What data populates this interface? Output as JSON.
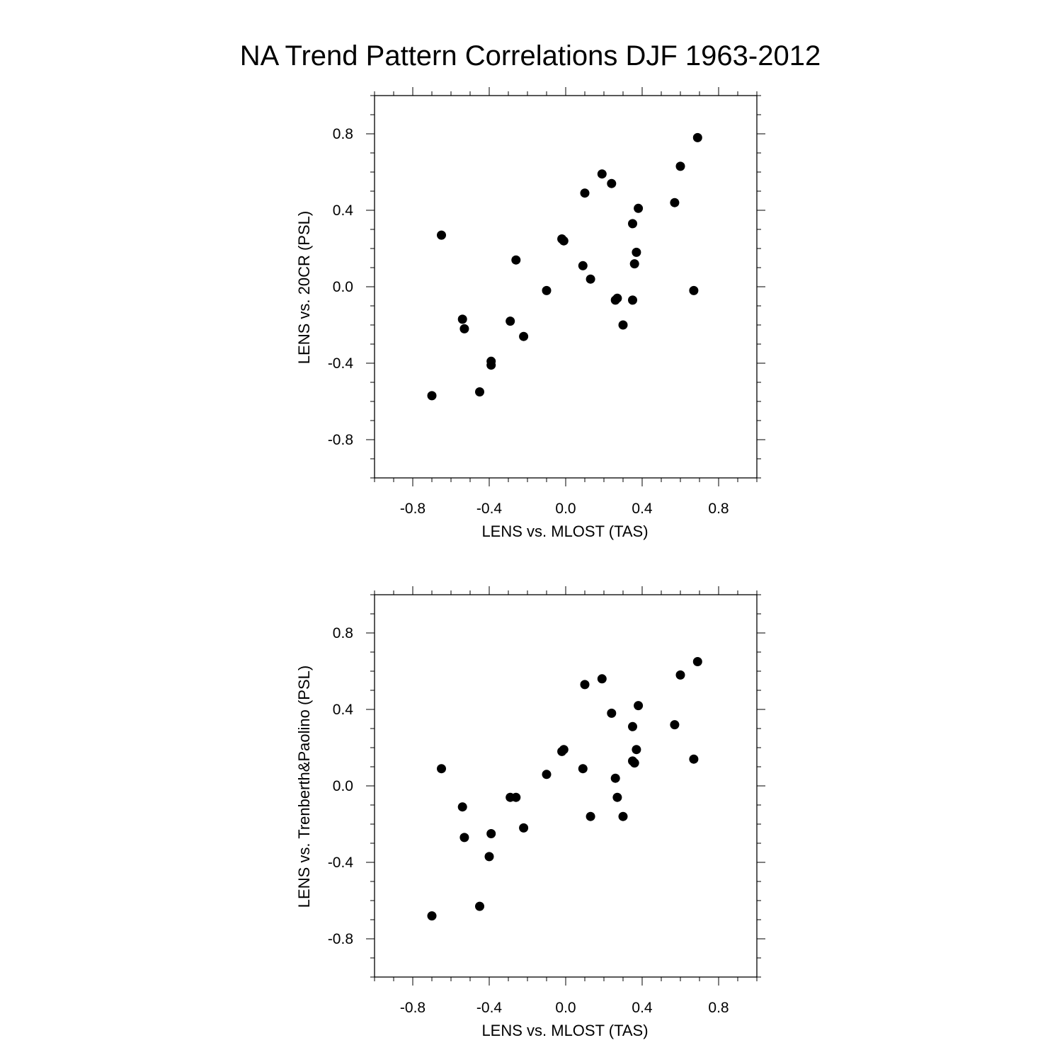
{
  "figure": {
    "title": "NA Trend Pattern Correlations DJF 1963-2012"
  },
  "colors": {
    "marker": "#000000",
    "axis": "#000000",
    "background": "#ffffff"
  },
  "chart_data": [
    {
      "type": "scatter",
      "xlabel": "LENS vs. MLOST (TAS)",
      "ylabel": "LENS vs. 20CR (PSL)",
      "xlim": [
        -1.0,
        1.0
      ],
      "ylim": [
        -1.0,
        1.0
      ],
      "xticks": [
        -0.8,
        -0.4,
        0.0,
        0.4,
        0.8
      ],
      "yticks": [
        -0.8,
        -0.4,
        0.0,
        0.4,
        0.8
      ],
      "xtick_labels": [
        "-0.8",
        "-0.4",
        "0.0",
        "0.4",
        "0.8"
      ],
      "ytick_labels": [
        "-0.8",
        "-0.4",
        "0.0",
        "0.4",
        "0.8"
      ],
      "grid": false,
      "points": [
        {
          "x": -0.7,
          "y": -0.57
        },
        {
          "x": -0.65,
          "y": 0.27
        },
        {
          "x": -0.54,
          "y": -0.17
        },
        {
          "x": -0.53,
          "y": -0.22
        },
        {
          "x": -0.45,
          "y": -0.55
        },
        {
          "x": -0.39,
          "y": -0.41
        },
        {
          "x": -0.39,
          "y": -0.39
        },
        {
          "x": -0.29,
          "y": -0.18
        },
        {
          "x": -0.26,
          "y": 0.14
        },
        {
          "x": -0.22,
          "y": -0.26
        },
        {
          "x": -0.1,
          "y": -0.02
        },
        {
          "x": -0.02,
          "y": 0.25
        },
        {
          "x": -0.01,
          "y": 0.24
        },
        {
          "x": 0.09,
          "y": 0.11
        },
        {
          "x": 0.1,
          "y": 0.49
        },
        {
          "x": 0.13,
          "y": 0.04
        },
        {
          "x": 0.19,
          "y": 0.59
        },
        {
          "x": 0.24,
          "y": 0.54
        },
        {
          "x": 0.26,
          "y": -0.07
        },
        {
          "x": 0.27,
          "y": -0.06
        },
        {
          "x": 0.3,
          "y": -0.2
        },
        {
          "x": 0.35,
          "y": 0.33
        },
        {
          "x": 0.35,
          "y": -0.07
        },
        {
          "x": 0.36,
          "y": 0.12
        },
        {
          "x": 0.37,
          "y": 0.18
        },
        {
          "x": 0.38,
          "y": 0.41
        },
        {
          "x": 0.57,
          "y": 0.44
        },
        {
          "x": 0.6,
          "y": 0.63
        },
        {
          "x": 0.67,
          "y": -0.02
        },
        {
          "x": 0.69,
          "y": 0.78
        }
      ]
    },
    {
      "type": "scatter",
      "xlabel": "LENS vs. MLOST (TAS)",
      "ylabel": "LENS vs. Trenberth&Paolino (PSL)",
      "xlim": [
        -1.0,
        1.0
      ],
      "ylim": [
        -1.0,
        1.0
      ],
      "xticks": [
        -0.8,
        -0.4,
        0.0,
        0.4,
        0.8
      ],
      "yticks": [
        -0.8,
        -0.4,
        0.0,
        0.4,
        0.8
      ],
      "xtick_labels": [
        "-0.8",
        "-0.4",
        "0.0",
        "0.4",
        "0.8"
      ],
      "ytick_labels": [
        "-0.8",
        "-0.4",
        "0.0",
        "0.4",
        "0.8"
      ],
      "grid": false,
      "points": [
        {
          "x": -0.7,
          "y": -0.68
        },
        {
          "x": -0.65,
          "y": 0.09
        },
        {
          "x": -0.54,
          "y": -0.11
        },
        {
          "x": -0.53,
          "y": -0.27
        },
        {
          "x": -0.45,
          "y": -0.63
        },
        {
          "x": -0.4,
          "y": -0.37
        },
        {
          "x": -0.39,
          "y": -0.25
        },
        {
          "x": -0.29,
          "y": -0.06
        },
        {
          "x": -0.26,
          "y": -0.06
        },
        {
          "x": -0.22,
          "y": -0.22
        },
        {
          "x": -0.1,
          "y": 0.06
        },
        {
          "x": -0.02,
          "y": 0.18
        },
        {
          "x": -0.01,
          "y": 0.19
        },
        {
          "x": 0.09,
          "y": 0.09
        },
        {
          "x": 0.1,
          "y": 0.53
        },
        {
          "x": 0.13,
          "y": -0.16
        },
        {
          "x": 0.19,
          "y": 0.56
        },
        {
          "x": 0.24,
          "y": 0.38
        },
        {
          "x": 0.26,
          "y": 0.04
        },
        {
          "x": 0.27,
          "y": -0.06
        },
        {
          "x": 0.3,
          "y": -0.16
        },
        {
          "x": 0.35,
          "y": 0.31
        },
        {
          "x": 0.35,
          "y": 0.13
        },
        {
          "x": 0.36,
          "y": 0.12
        },
        {
          "x": 0.37,
          "y": 0.19
        },
        {
          "x": 0.38,
          "y": 0.42
        },
        {
          "x": 0.57,
          "y": 0.32
        },
        {
          "x": 0.6,
          "y": 0.58
        },
        {
          "x": 0.67,
          "y": 0.14
        },
        {
          "x": 0.69,
          "y": 0.65
        }
      ]
    }
  ]
}
